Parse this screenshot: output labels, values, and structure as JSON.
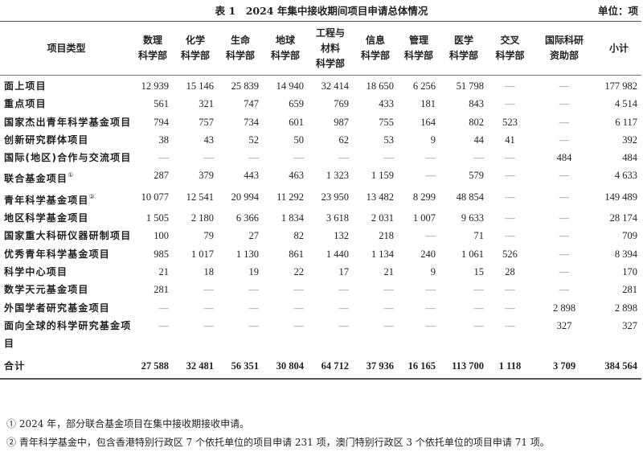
{
  "title": "表 1　2024 年集中接收期间项目申请总体情况",
  "unit": "单位：项",
  "columns": [
    "项目类型",
    "数理\n科学部",
    "化学\n科学部",
    "生命\n科学部",
    "地球\n科学部",
    "工程与\n材料\n科学部",
    "信息\n科学部",
    "管理\n科学部",
    "医学\n科学部",
    "交叉\n科学部",
    "国际科研\n资助部",
    "小计"
  ],
  "rows": [
    {
      "label": "面上项目",
      "values": [
        "12 939",
        "15 146",
        "25 839",
        "14 940",
        "32 414",
        "18 650",
        "6 256",
        "51 798",
        "—",
        "—",
        "177 982"
      ]
    },
    {
      "label": "重点项目",
      "values": [
        "561",
        "321",
        "747",
        "659",
        "769",
        "433",
        "181",
        "843",
        "—",
        "—",
        "4 514"
      ]
    },
    {
      "label": "国家杰出青年科学基金项目",
      "values": [
        "794",
        "757",
        "734",
        "601",
        "987",
        "755",
        "164",
        "802",
        "523",
        "—",
        "6 117"
      ]
    },
    {
      "label": "创新研究群体项目",
      "values": [
        "38",
        "43",
        "52",
        "50",
        "62",
        "53",
        "9",
        "44",
        "41",
        "—",
        "392"
      ]
    },
    {
      "label": "国际(地区)合作与交流项目",
      "values": [
        "—",
        "—",
        "—",
        "—",
        "—",
        "—",
        "—",
        "—",
        "—",
        "484",
        "484"
      ]
    },
    {
      "label": "联合基金项目",
      "note": "①",
      "values": [
        "287",
        "379",
        "443",
        "463",
        "1 323",
        "1 159",
        "—",
        "579",
        "—",
        "—",
        "4 633"
      ]
    },
    {
      "label": "青年科学基金项目",
      "note": "②",
      "values": [
        "10 077",
        "12 541",
        "20 994",
        "11 292",
        "23 950",
        "13 482",
        "8 299",
        "48 854",
        "—",
        "—",
        "149 489"
      ]
    },
    {
      "label": "地区科学基金项目",
      "values": [
        "1 505",
        "2 180",
        "6 366",
        "1 834",
        "3 618",
        "2 031",
        "1 007",
        "9 633",
        "—",
        "—",
        "28 174"
      ]
    },
    {
      "label": "国家重大科研仪器研制项目",
      "values": [
        "100",
        "79",
        "27",
        "82",
        "132",
        "218",
        "—",
        "71",
        "—",
        "—",
        "709"
      ]
    },
    {
      "label": "优秀青年科学基金项目",
      "values": [
        "985",
        "1 017",
        "1 130",
        "861",
        "1 440",
        "1 134",
        "240",
        "1 061",
        "526",
        "—",
        "8 394"
      ]
    },
    {
      "label": "科学中心项目",
      "values": [
        "21",
        "18",
        "19",
        "22",
        "17",
        "21",
        "9",
        "15",
        "28",
        "—",
        "170"
      ]
    },
    {
      "label": "数学天元基金项目",
      "values": [
        "281",
        "—",
        "—",
        "—",
        "—",
        "—",
        "—",
        "—",
        "—",
        "—",
        "281"
      ]
    },
    {
      "label": "外国学者研究基金项目",
      "values": [
        "—",
        "—",
        "—",
        "—",
        "—",
        "—",
        "—",
        "—",
        "—",
        "2 898",
        "2 898"
      ]
    },
    {
      "label": "面向全球的科学研究基金项目",
      "values": [
        "—",
        "—",
        "—",
        "—",
        "—",
        "—",
        "—",
        "—",
        "—",
        "327",
        "327"
      ]
    }
  ],
  "total": {
    "label": "合计",
    "values": [
      "27 588",
      "32 481",
      "56 351",
      "30 804",
      "64 712",
      "37 936",
      "16 165",
      "113 700",
      "1 118",
      "3 709",
      "384 564"
    ]
  },
  "footnotes": [
    "① 2024 年，部分联合基金项目在集中接收期接收申请。",
    "② 青年科学基金中，包含香港特别行政区 7 个依托单位的项目申请 231 项，澳门特别行政区 3 个依托单位的项目申请 71 项。"
  ]
}
